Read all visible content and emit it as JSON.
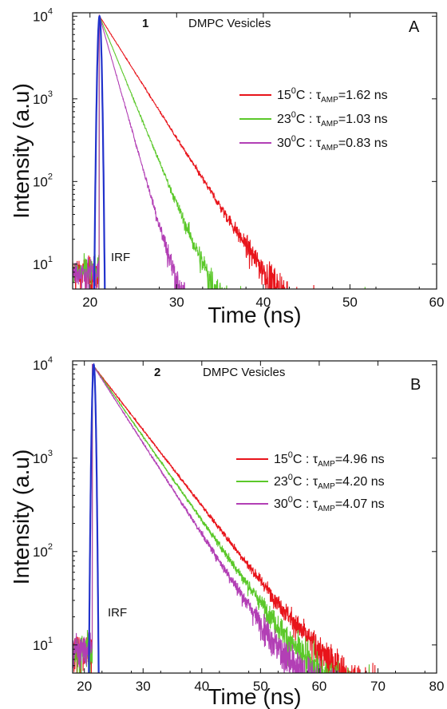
{
  "chart_data": [
    {
      "type": "line",
      "panel_letter": "A",
      "panel_number": "1",
      "annotation": "DMPC Vesicles",
      "xlabel": "Time (ns)",
      "ylabel": "Intensity (a.u)",
      "xlim": [
        18,
        60
      ],
      "xticks": [
        20,
        30,
        40,
        50,
        60
      ],
      "yscale": "log",
      "ylim": [
        5,
        11000
      ],
      "yticks": [
        {
          "value": 10,
          "base": "10",
          "exp": "1"
        },
        {
          "value": 100,
          "base": "10",
          "exp": "2"
        },
        {
          "value": 1000,
          "base": "10",
          "exp": "3"
        },
        {
          "value": 10000,
          "base": "10",
          "exp": "4"
        }
      ],
      "legend_position": "right",
      "noise_floor": 8,
      "peak_time": 21.1,
      "peak": 10000,
      "series": [
        {
          "name": "15°C : τAMP=1.62 ns",
          "temp": "15",
          "tau_label": "τ",
          "tau_sub": "AMP",
          "tau_value": "=1.62 ns",
          "color": "#e8141b",
          "decay_ns": 2.62
        },
        {
          "name": "23°C : τAMP=1.03 ns",
          "temp": "23",
          "tau_label": "τ",
          "tau_sub": "AMP",
          "tau_value": "=1.03 ns",
          "color": "#5bc82a",
          "decay_ns": 1.7
        },
        {
          "name": "30°C : τAMP=0.83 ns",
          "temp": "30",
          "tau_label": "τ",
          "tau_sub": "AMP",
          "tau_value": "=0.83 ns",
          "color": "#b23fb5",
          "decay_ns": 1.18
        }
      ],
      "irf": {
        "label": "IRF",
        "color": "#2233cc",
        "peak_time": 21.1,
        "width_ns": 0.22
      }
    },
    {
      "type": "line",
      "panel_letter": "B",
      "panel_number": "2",
      "annotation": "DMPC Vesicles",
      "xlabel": "Time (ns)",
      "ylabel": "Intensity (a.u)",
      "xlim": [
        18,
        80
      ],
      "xticks": [
        20,
        30,
        40,
        50,
        60,
        70,
        80
      ],
      "yscale": "log",
      "ylim": [
        5,
        11000
      ],
      "yticks": [
        {
          "value": 10,
          "base": "10",
          "exp": "1"
        },
        {
          "value": 100,
          "base": "10",
          "exp": "2"
        },
        {
          "value": 1000,
          "base": "10",
          "exp": "3"
        },
        {
          "value": 10000,
          "base": "10",
          "exp": "4"
        }
      ],
      "legend_position": "right",
      "noise_floor": 9,
      "peak_time": 21.4,
      "peak": 10000,
      "series": [
        {
          "name": "15°C : τAMP=4.96 ns",
          "temp": "15",
          "tau_label": "τ",
          "tau_sub": "AMP",
          "tau_value": "=4.96 ns",
          "color": "#e8141b",
          "decay_ns": 5.35
        },
        {
          "name": "23°C : τAMP=4.20 ns",
          "temp": "23",
          "tau_label": "τ",
          "tau_sub": "AMP",
          "tau_value": "=4.20 ns",
          "color": "#5bc82a",
          "decay_ns": 4.85
        },
        {
          "name": "30°C : τAMP=4.07 ns",
          "temp": "30",
          "tau_label": "τ",
          "tau_sub": "AMP",
          "tau_value": "=4.07 ns",
          "color": "#b23fb5",
          "decay_ns": 4.45
        }
      ],
      "irf": {
        "label": "IRF",
        "color": "#2233cc",
        "peak_time": 21.6,
        "width_ns": 0.3
      }
    }
  ]
}
